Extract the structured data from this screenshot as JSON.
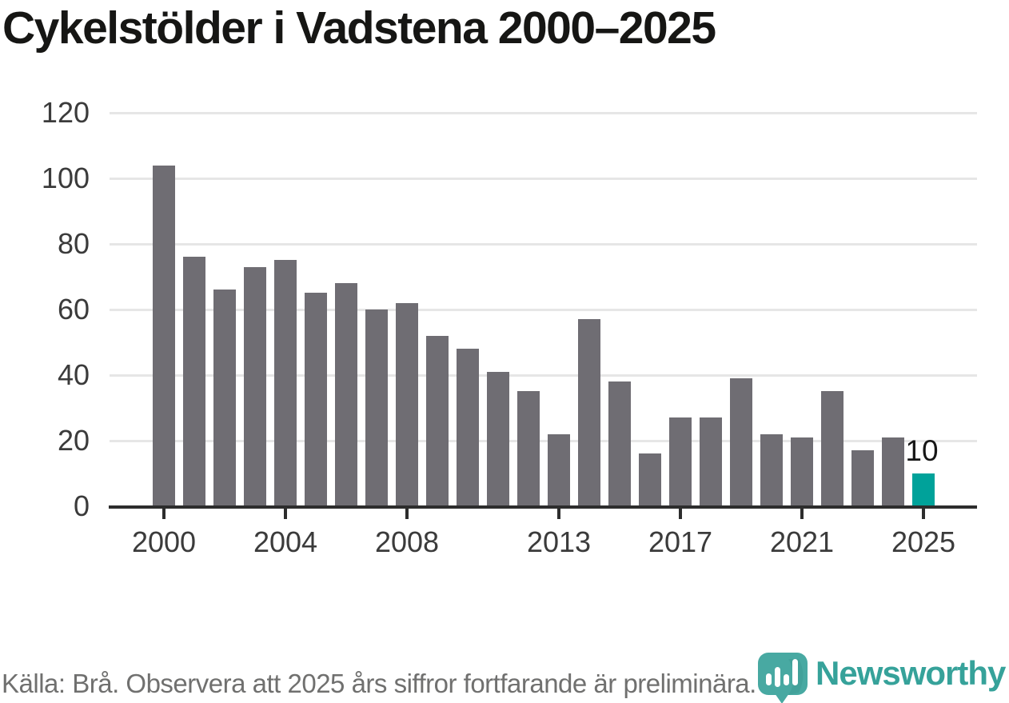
{
  "title": "Cykelstölder i Vadstena 2000–2025",
  "footer": {
    "source_note": "Källa: Brå. Observera att 2025 års siffror fortfarande är preliminära."
  },
  "logo": {
    "brand": "Newsworthy",
    "icon": "speech-bubble-with-bar-chart"
  },
  "colors": {
    "bar_gray": "#6f6d73",
    "bar_highlight_teal": "#00a29a",
    "gridline": "#e6e6e6",
    "axis": "#2d2d2d",
    "title_text": "#161614",
    "tick_text": "#3b3b3b",
    "annotation_text": "#161616",
    "footer_text": "#70706f",
    "brand_teal": "#36a29a"
  },
  "chart_data": {
    "type": "bar",
    "title": "Cykelstölder i Vadstena 2000–2025",
    "xlabel": "",
    "ylabel": "",
    "categories": [
      2000,
      2001,
      2002,
      2003,
      2004,
      2005,
      2006,
      2007,
      2008,
      2009,
      2010,
      2011,
      2012,
      2013,
      2014,
      2015,
      2016,
      2017,
      2018,
      2019,
      2020,
      2021,
      2022,
      2023,
      2024,
      2025
    ],
    "values": [
      104,
      76,
      66,
      73,
      75,
      65,
      68,
      60,
      62,
      52,
      48,
      41,
      35,
      22,
      57,
      38,
      16,
      27,
      27,
      39,
      22,
      21,
      35,
      17,
      21,
      10
    ],
    "highlight": {
      "year": 2025,
      "value": 10,
      "label": "10"
    },
    "ylim": [
      0,
      120
    ],
    "yticks": [
      0,
      20,
      40,
      60,
      80,
      100,
      120
    ],
    "x_tick_labels": [
      "2000",
      "2004",
      "2008",
      "2013",
      "2017",
      "2021",
      "2025"
    ],
    "grid": "horizontal-only",
    "legend": "none"
  }
}
